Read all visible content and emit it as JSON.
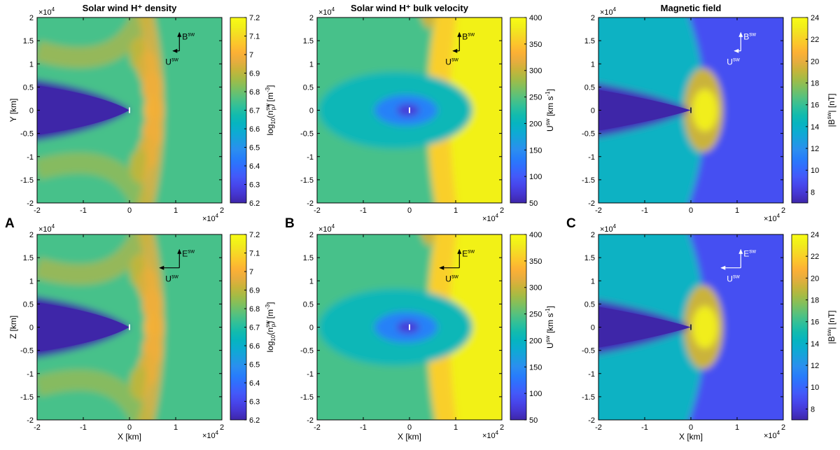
{
  "figure": {
    "panel_letters": [
      "A",
      "B",
      "C"
    ],
    "arrow_labels": {
      "bsw": "B",
      "esw": "E",
      "usw": "U",
      "superscript": "sw"
    },
    "exponent_label": "×10",
    "exponent_power": "4"
  },
  "colormap": [
    "#3e26a8",
    "#4536d0",
    "#4746eb",
    "#4359f9",
    "#336bfd",
    "#277dfa",
    "#2b8ef0",
    "#1c9de0",
    "#0dabd2",
    "#06b4c0",
    "#13bbad",
    "#32c098",
    "#56c17e",
    "#7cc060",
    "#a3bb46",
    "#c6b43a",
    "#e6ad3e",
    "#fcb035",
    "#fcc52c",
    "#f5da25",
    "#f1ef1a",
    "#f9fb15"
  ],
  "chart_data": [
    {
      "type": "heatmap",
      "row": "top",
      "col": 0,
      "panel_letter": "A",
      "title": "Solar wind H⁺ density",
      "quantity": "density",
      "xlabel": "",
      "ylabel": "Y [km]",
      "xlim": [
        -20000,
        20000
      ],
      "ylim": [
        -20000,
        20000
      ],
      "xticks": [
        "-2",
        "-1",
        "0",
        "1",
        "2"
      ],
      "yticks": [
        "2",
        "1.5",
        "1",
        "0.5",
        "0",
        "-0.5",
        "-1",
        "-1.5",
        "-2"
      ],
      "colorbar": {
        "label": "log10(n_p^sw) [m^-3]",
        "range": [
          6.2,
          7.2
        ],
        "ticks": [
          "7.2",
          "7.1",
          "7",
          "6.9",
          "6.8",
          "6.7",
          "6.6",
          "6.5",
          "6.4",
          "6.3",
          "6.2"
        ]
      },
      "arrows": [
        "B",
        "U"
      ]
    },
    {
      "type": "heatmap",
      "row": "top",
      "col": 1,
      "panel_letter": "B",
      "title": "Solar wind H⁺ bulk velocity",
      "quantity": "velocity",
      "xlabel": "",
      "ylabel": "",
      "xlim": [
        -20000,
        20000
      ],
      "ylim": [
        -20000,
        20000
      ],
      "xticks": [
        "-2",
        "-1",
        "0",
        "1",
        "2"
      ],
      "yticks": [
        "2",
        "1.5",
        "1",
        "0.5",
        "0",
        "-0.5",
        "-1",
        "-1.5",
        "-2"
      ],
      "colorbar": {
        "label": "U^sw [km s^-1]",
        "range": [
          50,
          400
        ],
        "ticks": [
          "400",
          "350",
          "300",
          "250",
          "200",
          "150",
          "100",
          "50"
        ]
      },
      "arrows": [
        "B",
        "U"
      ]
    },
    {
      "type": "heatmap",
      "row": "top",
      "col": 2,
      "panel_letter": "C",
      "title": "Magnetic field",
      "quantity": "bfield",
      "xlabel": "",
      "ylabel": "",
      "xlim": [
        -20000,
        20000
      ],
      "ylim": [
        -20000,
        20000
      ],
      "xticks": [
        "-2",
        "-1",
        "0",
        "1",
        "2"
      ],
      "yticks": [
        "2",
        "1.5",
        "1",
        "0.5",
        "0",
        "-0.5",
        "-1",
        "-1.5",
        "-2"
      ],
      "colorbar": {
        "label": "|B^sw| [nT]",
        "range": [
          7,
          24
        ],
        "ticks": [
          "24",
          "22",
          "20",
          "18",
          "16",
          "14",
          "12",
          "10",
          "8"
        ]
      },
      "arrows": [
        "B",
        "U"
      ]
    },
    {
      "type": "heatmap",
      "row": "bottom",
      "col": 0,
      "title": "",
      "quantity": "density",
      "xlabel": "X [km]",
      "ylabel": "Z [km]",
      "xlim": [
        -20000,
        20000
      ],
      "ylim": [
        -20000,
        20000
      ],
      "xticks": [
        "-2",
        "-1",
        "0",
        "1",
        "2"
      ],
      "yticks": [
        "2",
        "1.5",
        "1",
        "0.5",
        "0",
        "-0.5",
        "-1",
        "-1.5",
        "-2"
      ],
      "colorbar": {
        "label": "log10(n_p^sw) [m^-3]",
        "range": [
          6.2,
          7.2
        ],
        "ticks": [
          "7.2",
          "7.1",
          "7",
          "6.9",
          "6.8",
          "6.7",
          "6.6",
          "6.5",
          "6.4",
          "6.3",
          "6.2"
        ]
      },
      "arrows": [
        "E",
        "U"
      ]
    },
    {
      "type": "heatmap",
      "row": "bottom",
      "col": 1,
      "title": "",
      "quantity": "velocity",
      "xlabel": "X [km]",
      "ylabel": "",
      "xlim": [
        -20000,
        20000
      ],
      "ylim": [
        -20000,
        20000
      ],
      "xticks": [
        "-2",
        "-1",
        "0",
        "1",
        "2"
      ],
      "yticks": [
        "2",
        "1.5",
        "1",
        "0.5",
        "0",
        "-0.5",
        "-1",
        "-1.5",
        "-2"
      ],
      "colorbar": {
        "label": "U^sw [km s^-1]",
        "range": [
          50,
          400
        ],
        "ticks": [
          "400",
          "350",
          "300",
          "250",
          "200",
          "150",
          "100",
          "50"
        ]
      },
      "arrows": [
        "E",
        "U"
      ]
    },
    {
      "type": "heatmap",
      "row": "bottom",
      "col": 2,
      "title": "",
      "quantity": "bfield",
      "xlabel": "X [km]",
      "ylabel": "",
      "xlim": [
        -20000,
        20000
      ],
      "ylim": [
        -20000,
        20000
      ],
      "xticks": [
        "-2",
        "-1",
        "0",
        "1",
        "2"
      ],
      "yticks": [
        "2",
        "1.5",
        "1",
        "0.5",
        "0",
        "-0.5",
        "-1",
        "-1.5",
        "-2"
      ],
      "colorbar": {
        "label": "|B^sw| [nT]",
        "range": [
          7,
          24
        ],
        "ticks": [
          "24",
          "22",
          "20",
          "18",
          "16",
          "14",
          "12",
          "10",
          "8"
        ]
      },
      "arrows": [
        "E",
        "U"
      ]
    }
  ]
}
